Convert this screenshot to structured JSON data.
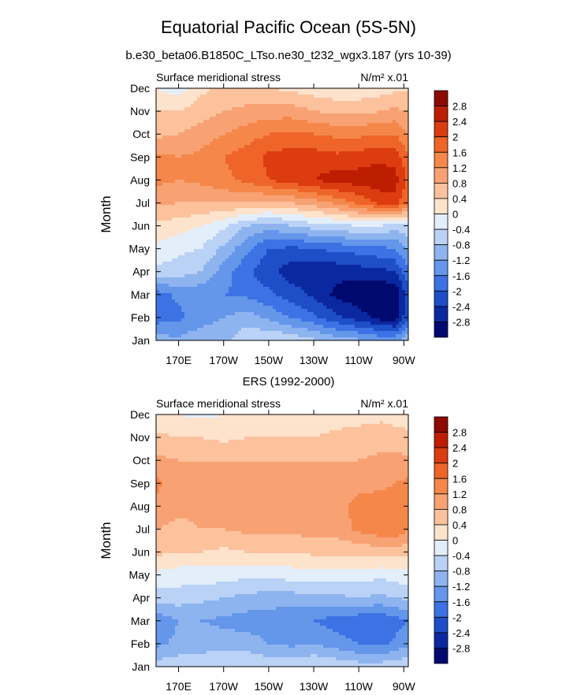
{
  "title": "Equatorial Pacific Ocean (5S-5N)",
  "subtitle": "b.e30_beta06.B1850C_LTso.ne30_t232_wgx3.187 (yrs 10-39)",
  "colorbar": {
    "labels": [
      "2.8",
      "2.4",
      "2",
      "1.6",
      "1.2",
      "0.8",
      "0.4",
      "0",
      "-0.4",
      "-0.8",
      "-1.2",
      "-1.6",
      "-2",
      "-2.4",
      "-2.8"
    ],
    "colors": [
      "#8c0a00",
      "#be1e00",
      "#dc3c10",
      "#ef6428",
      "#f5874a",
      "#f8a274",
      "#fbc29c",
      "#fde2cc",
      "#e3eefb",
      "#bad2f6",
      "#8eb4f0",
      "#6496ea",
      "#3c72e4",
      "#1e4ec8",
      "#0a28a0",
      "#000a6e"
    ]
  },
  "chart_data": [
    {
      "type": "heatmap",
      "title": "",
      "left_label": "Surface meridional stress",
      "right_label": "N/m² x.01",
      "ylabel": "Month",
      "xlabel": "",
      "x_ticks": [
        "170E",
        "170W",
        "150W",
        "130W",
        "110W",
        "90W"
      ],
      "x_tick_values": [
        170,
        190,
        210,
        230,
        250,
        270
      ],
      "xlim": [
        160,
        272
      ],
      "y_ticks": [
        "Jan",
        "Feb",
        "Mar",
        "Apr",
        "May",
        "Jun",
        "Jul",
        "Aug",
        "Sep",
        "Oct",
        "Nov",
        "Dec"
      ],
      "levels": [
        -2.8,
        -2.4,
        -2,
        -1.6,
        -1.2,
        -0.8,
        -0.4,
        0,
        0.4,
        0.8,
        1.2,
        1.6,
        2,
        2.4,
        2.8
      ],
      "x": [
        160,
        170,
        180,
        190,
        200,
        210,
        220,
        230,
        240,
        250,
        260,
        266,
        272
      ],
      "values": [
        [
          -1.0,
          -1.1,
          -0.9,
          -0.9,
          -0.5,
          -0.4,
          -0.5,
          -0.7,
          -1.0,
          -1.1,
          -1.3,
          -1.3,
          -0.9
        ],
        [
          -1.8,
          -1.7,
          -1.4,
          -1.2,
          -1.0,
          -1.3,
          -1.6,
          -1.9,
          -2.3,
          -2.6,
          -3.0,
          -3.1,
          -2.0
        ],
        [
          -1.8,
          -1.5,
          -1.5,
          -1.6,
          -1.7,
          -1.9,
          -2.2,
          -2.5,
          -2.9,
          -3.1,
          -3.2,
          -3.2,
          -2.2
        ],
        [
          -0.5,
          -0.6,
          -0.8,
          -1.4,
          -1.9,
          -2.3,
          -2.6,
          -2.7,
          -2.7,
          -2.6,
          -2.5,
          -2.4,
          -1.7
        ],
        [
          -0.1,
          -0.3,
          -0.4,
          -0.9,
          -1.5,
          -2.0,
          -2.1,
          -2.0,
          -1.9,
          -1.8,
          -1.7,
          -1.6,
          -1.1
        ],
        [
          0.3,
          0.2,
          0.0,
          -0.3,
          -0.8,
          -1.0,
          -0.8,
          -0.6,
          -0.5,
          -0.4,
          -0.4,
          -0.6,
          -0.5
        ],
        [
          0.9,
          0.8,
          0.8,
          0.8,
          0.8,
          0.7,
          0.8,
          1.0,
          1.3,
          1.7,
          2.1,
          2.2,
          1.6
        ],
        [
          1.3,
          1.2,
          1.3,
          1.5,
          1.7,
          2.0,
          2.2,
          2.4,
          2.6,
          2.6,
          2.7,
          2.6,
          1.9
        ],
        [
          1.3,
          1.2,
          1.3,
          1.6,
          1.8,
          2.1,
          2.2,
          2.2,
          2.1,
          2.2,
          2.3,
          2.2,
          1.7
        ],
        [
          0.7,
          0.8,
          1.0,
          1.2,
          1.4,
          1.6,
          1.7,
          1.6,
          1.5,
          1.5,
          1.6,
          1.6,
          1.2
        ],
        [
          0.4,
          0.4,
          0.6,
          0.8,
          0.9,
          1.0,
          1.0,
          0.8,
          0.7,
          0.7,
          0.8,
          0.9,
          0.8
        ],
        [
          0.0,
          -0.2,
          0.3,
          0.5,
          0.5,
          0.4,
          0.3,
          0.2,
          0.1,
          0.1,
          0.2,
          0.3,
          0.3
        ]
      ]
    },
    {
      "type": "heatmap",
      "title": "ERS (1992-2000)",
      "left_label": "Surface meridional stress",
      "right_label": "N/m² x.01",
      "ylabel": "Month",
      "xlabel": "",
      "x_ticks": [
        "170E",
        "170W",
        "150W",
        "130W",
        "110W",
        "90W"
      ],
      "x_tick_values": [
        170,
        190,
        210,
        230,
        250,
        270
      ],
      "xlim": [
        160,
        272
      ],
      "y_ticks": [
        "Jan",
        "Feb",
        "Mar",
        "Apr",
        "May",
        "Jun",
        "Jul",
        "Aug",
        "Sep",
        "Oct",
        "Nov",
        "Dec"
      ],
      "levels": [
        -2.8,
        -2.4,
        -2,
        -1.6,
        -1.2,
        -0.8,
        -0.4,
        0,
        0.4,
        0.8,
        1.2,
        1.6,
        2,
        2.4,
        2.8
      ],
      "x": [
        160,
        170,
        180,
        190,
        200,
        210,
        220,
        230,
        240,
        250,
        260,
        266,
        272
      ],
      "values": [
        [
          -0.6,
          -0.5,
          -0.5,
          -0.4,
          -0.4,
          -0.5,
          -0.5,
          -0.4,
          -0.5,
          -0.6,
          -0.6,
          -0.5,
          -0.5
        ],
        [
          -1.3,
          -1.1,
          -1.0,
          -1.0,
          -1.0,
          -1.2,
          -1.3,
          -1.2,
          -1.4,
          -1.6,
          -1.7,
          -1.5,
          -1.3
        ],
        [
          -1.5,
          -1.2,
          -1.2,
          -1.3,
          -1.4,
          -1.4,
          -1.5,
          -1.6,
          -1.8,
          -1.9,
          -1.9,
          -1.8,
          -1.6
        ],
        [
          -0.6,
          -0.6,
          -0.7,
          -0.8,
          -0.9,
          -1.0,
          -1.0,
          -0.9,
          -0.9,
          -0.8,
          -0.9,
          -0.8,
          -0.7
        ],
        [
          -0.1,
          -0.2,
          -0.2,
          -0.2,
          -0.3,
          -0.3,
          -0.2,
          -0.2,
          -0.2,
          -0.2,
          -0.3,
          -0.2,
          -0.2
        ],
        [
          0.5,
          0.4,
          0.4,
          0.3,
          0.4,
          0.4,
          0.4,
          0.5,
          0.5,
          0.5,
          0.6,
          0.6,
          0.5
        ],
        [
          0.8,
          0.7,
          0.8,
          0.8,
          0.9,
          0.9,
          0.9,
          1.0,
          1.0,
          1.3,
          1.5,
          1.5,
          1.3
        ],
        [
          1.1,
          0.9,
          0.9,
          0.9,
          1.0,
          1.0,
          1.1,
          1.1,
          1.1,
          1.3,
          1.4,
          1.4,
          1.3
        ],
        [
          1.3,
          1.0,
          0.9,
          0.9,
          1.0,
          1.0,
          1.0,
          1.0,
          1.0,
          1.1,
          1.1,
          1.2,
          1.3
        ],
        [
          0.9,
          0.8,
          0.8,
          0.8,
          0.8,
          0.8,
          0.8,
          0.8,
          0.8,
          0.8,
          0.9,
          0.9,
          0.9
        ],
        [
          0.5,
          0.4,
          0.4,
          0.3,
          0.4,
          0.4,
          0.4,
          0.4,
          0.5,
          0.6,
          0.6,
          0.6,
          0.5
        ],
        [
          0.1,
          0.0,
          -0.1,
          0.0,
          0.1,
          0.1,
          0.2,
          0.1,
          0.2,
          0.2,
          0.3,
          0.2,
          0.2
        ]
      ]
    }
  ]
}
